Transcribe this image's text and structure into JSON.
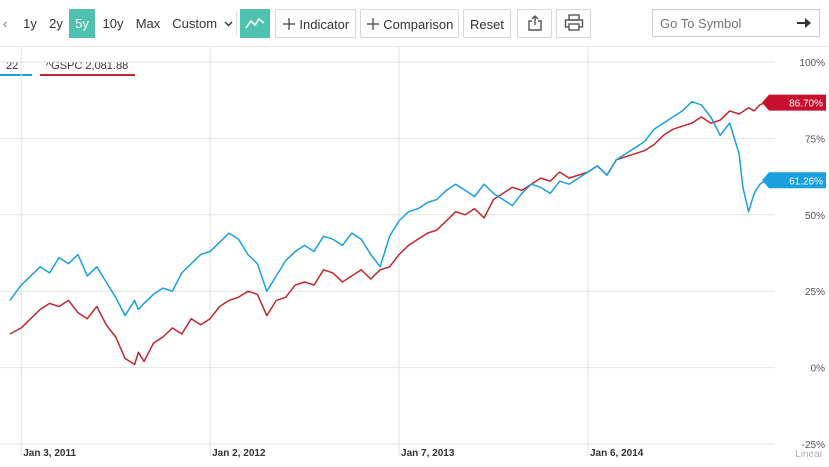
{
  "toolbar": {
    "partial_left_label": "‹",
    "ranges": [
      {
        "label": "1y",
        "active": false
      },
      {
        "label": "2y",
        "active": false
      },
      {
        "label": "5y",
        "active": true
      },
      {
        "label": "10y",
        "active": false
      },
      {
        "label": "Max",
        "active": false
      }
    ],
    "custom_label": "Custom",
    "chart_type_icon": "line-chart-icon",
    "indicator_label": "Indicator",
    "comparison_label": "Comparison",
    "reset_label": "Reset",
    "share_icon": "share-icon",
    "print_icon": "print-icon",
    "symbol_placeholder": "Go To Symbol",
    "go_icon": "arrow-right-icon"
  },
  "legend": {
    "chips": [
      {
        "label": "22",
        "color": "#1a9fe0"
      },
      {
        "label": "^GSPC 2,081.88",
        "color": "#c1272d"
      }
    ]
  },
  "badges": [
    {
      "label": "86.70%",
      "color": "#c8102e"
    },
    {
      "label": "61.26%",
      "color": "#1a9fe0"
    }
  ],
  "chart_data": {
    "type": "line",
    "ylim": [
      -25,
      100
    ],
    "y_ticks": [
      "100%",
      "75%",
      "50%",
      "25%",
      "0%",
      "-25%"
    ],
    "y_tick_values": [
      100,
      75,
      50,
      25,
      0,
      -25
    ],
    "x_ticks": [
      {
        "label": "Jan 3, 2011",
        "t": 0.0
      },
      {
        "label": "Jan 2, 2012",
        "t": 1.0
      },
      {
        "label": "Jan 7, 2013",
        "t": 2.0
      },
      {
        "label": "Jan 6, 2014",
        "t": 3.0
      }
    ],
    "xlim": [
      -0.07,
      3.99
    ],
    "scale_label": "Linear",
    "grid": true,
    "series": [
      {
        "name": "^GSPC",
        "color": "#c1272d",
        "x": [
          -0.06,
          0.0,
          0.05,
          0.1,
          0.15,
          0.2,
          0.25,
          0.3,
          0.35,
          0.4,
          0.45,
          0.5,
          0.55,
          0.6,
          0.62,
          0.65,
          0.7,
          0.75,
          0.8,
          0.85,
          0.9,
          0.95,
          1.0,
          1.05,
          1.1,
          1.15,
          1.2,
          1.25,
          1.3,
          1.35,
          1.4,
          1.45,
          1.5,
          1.55,
          1.6,
          1.65,
          1.7,
          1.75,
          1.8,
          1.85,
          1.9,
          1.95,
          2.0,
          2.05,
          2.1,
          2.15,
          2.2,
          2.25,
          2.3,
          2.35,
          2.4,
          2.45,
          2.5,
          2.55,
          2.6,
          2.65,
          2.7,
          2.75,
          2.8,
          2.85,
          2.9,
          2.95,
          3.0,
          3.05,
          3.1,
          3.15,
          3.2,
          3.25,
          3.3,
          3.35,
          3.4,
          3.45,
          3.5,
          3.55,
          3.6,
          3.65,
          3.7,
          3.75,
          3.8,
          3.85,
          3.88,
          3.91,
          3.94
        ],
        "values": [
          11,
          13,
          16,
          19,
          21,
          20,
          22,
          18,
          16,
          20,
          14,
          10,
          3,
          1,
          5,
          2,
          8,
          10,
          13,
          11,
          16,
          14,
          16,
          20,
          22,
          23,
          25,
          24,
          17,
          22,
          23,
          27,
          28,
          27,
          32,
          31,
          28,
          30,
          32,
          29,
          32,
          33,
          37,
          40,
          42,
          44,
          45,
          48,
          51,
          50,
          52,
          49,
          55,
          57,
          59,
          58,
          60,
          62,
          61,
          64,
          62,
          63,
          64,
          66,
          63,
          68,
          69,
          70,
          71,
          73,
          76,
          78,
          79,
          80,
          82,
          80,
          81,
          84,
          83,
          85,
          84,
          86,
          86.7
        ]
      },
      {
        "name": "Comparison",
        "color": "#1a9fe0",
        "x": [
          -0.06,
          0.0,
          0.05,
          0.1,
          0.15,
          0.2,
          0.25,
          0.3,
          0.35,
          0.4,
          0.45,
          0.5,
          0.55,
          0.6,
          0.62,
          0.65,
          0.7,
          0.75,
          0.8,
          0.85,
          0.9,
          0.95,
          1.0,
          1.05,
          1.1,
          1.15,
          1.2,
          1.25,
          1.3,
          1.35,
          1.4,
          1.45,
          1.5,
          1.55,
          1.6,
          1.65,
          1.7,
          1.75,
          1.8,
          1.85,
          1.9,
          1.95,
          2.0,
          2.05,
          2.1,
          2.15,
          2.2,
          2.25,
          2.3,
          2.35,
          2.4,
          2.45,
          2.5,
          2.55,
          2.6,
          2.65,
          2.7,
          2.75,
          2.8,
          2.85,
          2.9,
          2.95,
          3.0,
          3.05,
          3.1,
          3.15,
          3.2,
          3.25,
          3.3,
          3.35,
          3.4,
          3.45,
          3.5,
          3.55,
          3.6,
          3.65,
          3.7,
          3.75,
          3.8,
          3.82,
          3.85,
          3.88,
          3.91,
          3.94
        ],
        "values": [
          22,
          27,
          30,
          33,
          31,
          36,
          34,
          37,
          30,
          33,
          28,
          23,
          17,
          22,
          19,
          21,
          24,
          26,
          25,
          31,
          34,
          37,
          38,
          41,
          44,
          42,
          37,
          34,
          25,
          30,
          35,
          38,
          40,
          38,
          43,
          42,
          40,
          44,
          42,
          37,
          33,
          43,
          48,
          51,
          52,
          54,
          55,
          58,
          60,
          58,
          56,
          60,
          57,
          55,
          53,
          57,
          60,
          59,
          57,
          61,
          60,
          62,
          64,
          66,
          63,
          68,
          70,
          72,
          74,
          78,
          80,
          82,
          84,
          87,
          86,
          82,
          76,
          80,
          70,
          59,
          51,
          57,
          60,
          61.3
        ]
      }
    ]
  }
}
